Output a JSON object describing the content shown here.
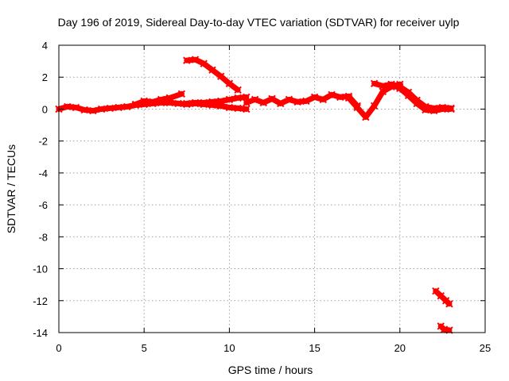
{
  "chart_data": {
    "type": "scatter",
    "title": "Day 196 of 2019, Sidereal Day-to-day VTEC variation (SDTVAR) for receiver uylp",
    "xlabel": "GPS time / hours",
    "ylabel": "SDTVAR / TECUs",
    "xlim": [
      0,
      25
    ],
    "ylim": [
      -14,
      4
    ],
    "xticks": [
      0,
      5,
      10,
      15,
      20,
      25
    ],
    "xtick_labels": [
      "0",
      "5",
      "10",
      "15",
      "20",
      "25"
    ],
    "yticks": [
      -14,
      -12,
      -10,
      -8,
      -6,
      -4,
      -2,
      0,
      2,
      4
    ],
    "ytick_labels": [
      "-14",
      "-12",
      "-10",
      "-8",
      "-6",
      "-4",
      "-2",
      "0",
      "2",
      "4"
    ],
    "grid": true,
    "marker_color": "#ff0000",
    "series": [
      {
        "name": "arc-main-early",
        "x": [
          0,
          0.5,
          1,
          1.5,
          2,
          2.5,
          3,
          3.5,
          4,
          4.5,
          5,
          5.5,
          6,
          6.5,
          7,
          7.5,
          8
        ],
        "y": [
          0.0,
          0.15,
          0.1,
          -0.05,
          -0.1,
          0.0,
          0.05,
          0.1,
          0.15,
          0.25,
          0.3,
          0.35,
          0.4,
          0.4,
          0.35,
          0.3,
          0.35
        ]
      },
      {
        "name": "arc-early-rise",
        "x": [
          4.5,
          5,
          5.5,
          6,
          6.5,
          7.2
        ],
        "y": [
          0.3,
          0.5,
          0.45,
          0.6,
          0.7,
          0.95
        ]
      },
      {
        "name": "arc-descent",
        "x": [
          7.5,
          8,
          8.5,
          9,
          9.5,
          10,
          10.5
        ],
        "y": [
          3.05,
          3.1,
          2.85,
          2.45,
          2.05,
          1.6,
          1.2
        ]
      },
      {
        "name": "arc-upper-band",
        "x": [
          7.5,
          8,
          8.5,
          9,
          9.5,
          10,
          10.5,
          11
        ],
        "y": [
          0.35,
          0.4,
          0.4,
          0.45,
          0.5,
          0.6,
          0.7,
          0.75
        ]
      },
      {
        "name": "arc-lower-band",
        "x": [
          8,
          8.5,
          9,
          9.5,
          10,
          10.5,
          11
        ],
        "y": [
          0.35,
          0.3,
          0.25,
          0.2,
          0.1,
          0.05,
          0.0
        ]
      },
      {
        "name": "arc-mid",
        "x": [
          11,
          11.5,
          12,
          12.5,
          13,
          13.5,
          14,
          14.5,
          15,
          15.5,
          16,
          16.5,
          17,
          17.5
        ],
        "y": [
          0.4,
          0.6,
          0.4,
          0.65,
          0.35,
          0.6,
          0.45,
          0.5,
          0.75,
          0.6,
          0.9,
          0.75,
          0.8,
          0.2
        ]
      },
      {
        "name": "arc-dip",
        "x": [
          17.0,
          17.5,
          18.0,
          18.5,
          19.0,
          19.5,
          20.0
        ],
        "y": [
          0.7,
          0.1,
          -0.5,
          0.2,
          1.1,
          1.4,
          1.55
        ]
      },
      {
        "name": "arc-hump-a",
        "x": [
          18.5,
          19,
          19.5,
          20,
          20.5,
          21,
          21.5,
          22,
          22.5,
          23
        ],
        "y": [
          1.6,
          1.45,
          1.55,
          1.4,
          1.05,
          0.55,
          0.15,
          0.05,
          0.1,
          0.05
        ]
      },
      {
        "name": "arc-hump-b",
        "x": [
          19.5,
          20,
          20.5,
          21,
          21.5,
          22,
          22.5,
          23
        ],
        "y": [
          1.55,
          1.3,
          0.85,
          0.35,
          -0.05,
          -0.1,
          0.0,
          0.0
        ]
      },
      {
        "name": "arc-outlier-upper",
        "x": [
          22.1,
          22.4,
          22.7,
          22.9
        ],
        "y": [
          -11.4,
          -11.7,
          -12.0,
          -12.2
        ]
      },
      {
        "name": "arc-outlier-lower",
        "x": [
          22.4,
          22.6,
          22.9
        ],
        "y": [
          -13.6,
          -13.8,
          -13.85
        ]
      }
    ]
  }
}
